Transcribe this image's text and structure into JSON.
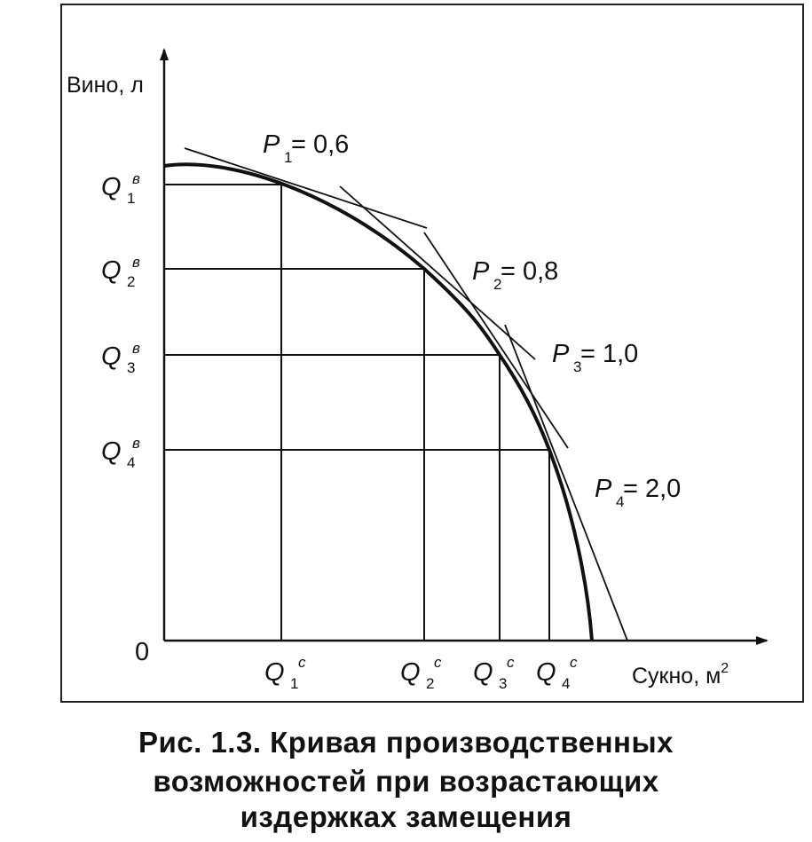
{
  "axes": {
    "y_label": "Вино, л",
    "x_label_main": "Сукно, м",
    "x_label_sup": "2",
    "origin": "0"
  },
  "y_ticks": [
    {
      "main": "Q",
      "sub": "1",
      "sup": "в"
    },
    {
      "main": "Q",
      "sub": "2",
      "sup": "в"
    },
    {
      "main": "Q",
      "sub": "3",
      "sup": "в"
    },
    {
      "main": "Q",
      "sub": "4",
      "sup": "в"
    }
  ],
  "x_ticks": [
    {
      "main": "Q",
      "sub": "1",
      "sup": "c"
    },
    {
      "main": "Q",
      "sub": "2",
      "sup": "c"
    },
    {
      "main": "Q",
      "sub": "3",
      "sup": "c"
    },
    {
      "main": "Q",
      "sub": "4",
      "sup": "c"
    }
  ],
  "slopes": [
    {
      "main": "P",
      "sub": "1",
      "value": " = 0,6"
    },
    {
      "main": "P",
      "sub": "2",
      "value": " = 0,8"
    },
    {
      "main": "P",
      "sub": "3",
      "value": " = 1,0"
    },
    {
      "main": "P",
      "sub": "4",
      "value": " = 2,0"
    }
  ],
  "caption": {
    "line1": "Рис. 1.3. Кривая производственных",
    "line2": "возможностей при возрастающих",
    "line3": "издержках замещения"
  }
}
